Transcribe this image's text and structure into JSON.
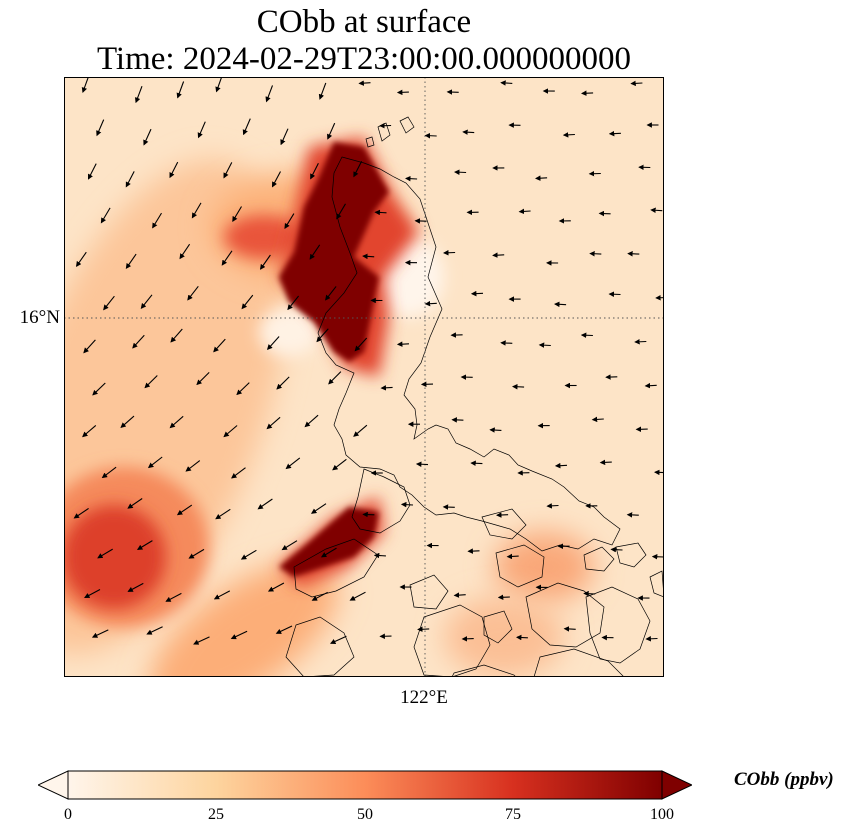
{
  "title": {
    "line1": "CObb at surface",
    "line2": "Time: 2024-02-29T23:00:00.000000000"
  },
  "axes": {
    "lat_tick": "16°N",
    "lon_tick": "122°E"
  },
  "colorbar": {
    "label": "CObb (ppbv)",
    "ticks": [
      "0",
      "25",
      "50",
      "75",
      "100"
    ],
    "range": [
      0,
      100
    ],
    "extend": "both",
    "colormap": [
      "#fff5eb",
      "#fdd49e",
      "#fc8d59",
      "#d7301f",
      "#7f0000"
    ]
  },
  "map": {
    "background_color": "#fde4c7",
    "gridline_style": "dotted",
    "features": [
      "concentration-field",
      "coastlines",
      "wind-vectors",
      "gridlines"
    ]
  }
}
